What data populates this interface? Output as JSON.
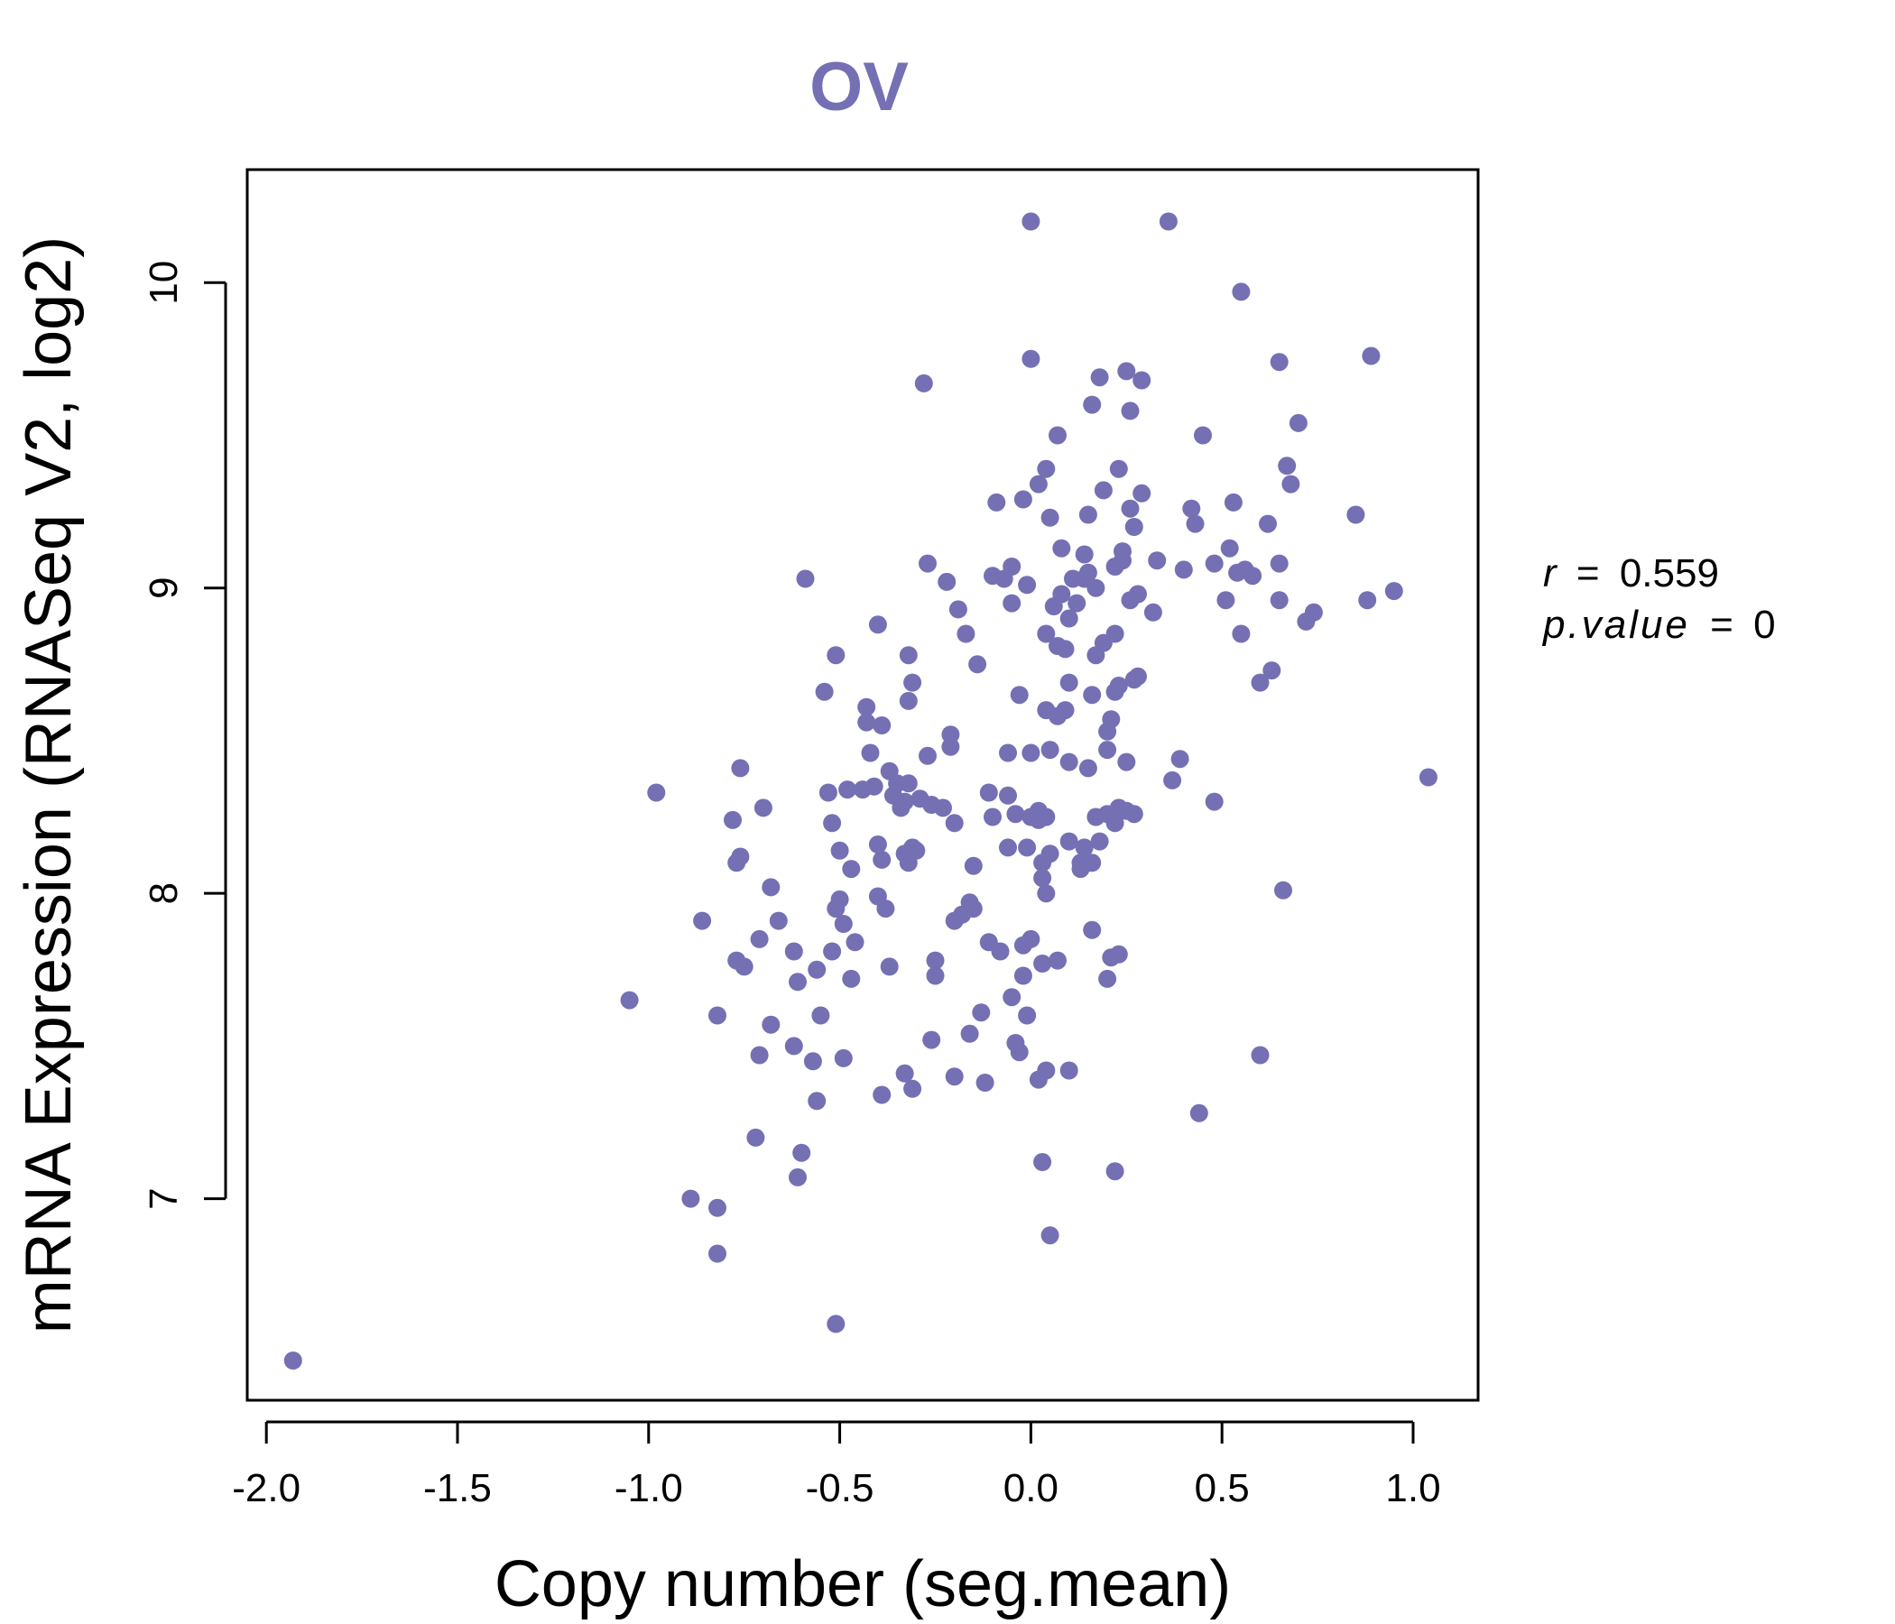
{
  "chart_data": {
    "type": "scatter",
    "title": "OV",
    "xlabel": "Copy number (seg.mean)",
    "ylabel": "mRNA Expression (RNASeq V2, log2)",
    "xlim": [
      -2.05,
      1.17
    ],
    "ylim": [
      6.34,
      10.37
    ],
    "xticks": [
      -2.0,
      -1.5,
      -1.0,
      -0.5,
      0.0,
      0.5,
      1.0
    ],
    "xtick_labels": [
      "-2.0",
      "-1.5",
      "-1.0",
      "-0.5",
      "0.0",
      "0.5",
      "1.0"
    ],
    "yticks": [
      7,
      8,
      9,
      10
    ],
    "ytick_labels": [
      "7",
      "8",
      "9",
      "10"
    ],
    "grid": false,
    "point_color": "#7570b3",
    "annotation": {
      "r_label": "r",
      "r_value": "0.559",
      "p_label": "p.value",
      "p_value": "0",
      "equals": "="
    },
    "points": [
      [
        -1.93,
        6.47
      ],
      [
        -1.05,
        7.65
      ],
      [
        -0.98,
        8.33
      ],
      [
        -0.89,
        7.0
      ],
      [
        -0.86,
        7.91
      ],
      [
        -0.82,
        6.97
      ],
      [
        -0.82,
        7.6
      ],
      [
        -0.82,
        6.82
      ],
      [
        -0.78,
        8.24
      ],
      [
        -0.77,
        7.78
      ],
      [
        -0.77,
        8.1
      ],
      [
        -0.76,
        8.41
      ],
      [
        -0.76,
        8.12
      ],
      [
        -0.75,
        7.76
      ],
      [
        -0.72,
        7.2
      ],
      [
        -0.71,
        7.85
      ],
      [
        -0.71,
        7.47
      ],
      [
        -0.7,
        8.28
      ],
      [
        -0.68,
        8.02
      ],
      [
        -0.68,
        7.57
      ],
      [
        -0.66,
        7.91
      ],
      [
        -0.62,
        7.81
      ],
      [
        -0.62,
        7.5
      ],
      [
        -0.61,
        7.71
      ],
      [
        -0.61,
        7.07
      ],
      [
        -0.6,
        7.15
      ],
      [
        -0.59,
        9.03
      ],
      [
        -0.57,
        7.45
      ],
      [
        -0.56,
        7.32
      ],
      [
        -0.56,
        7.75
      ],
      [
        -0.55,
        7.6
      ],
      [
        -0.54,
        8.66
      ],
      [
        -0.53,
        8.33
      ],
      [
        -0.52,
        8.23
      ],
      [
        -0.52,
        7.81
      ],
      [
        -0.51,
        8.78
      ],
      [
        -0.51,
        7.95
      ],
      [
        -0.51,
        6.59
      ],
      [
        -0.5,
        7.98
      ],
      [
        -0.5,
        8.14
      ],
      [
        -0.49,
        7.9
      ],
      [
        -0.49,
        7.46
      ],
      [
        -0.48,
        8.34
      ],
      [
        -0.47,
        8.08
      ],
      [
        -0.47,
        7.72
      ],
      [
        -0.46,
        7.84
      ],
      [
        -0.44,
        8.34
      ],
      [
        -0.43,
        8.61
      ],
      [
        -0.43,
        8.56
      ],
      [
        -0.42,
        8.46
      ],
      [
        -0.41,
        8.35
      ],
      [
        -0.4,
        8.88
      ],
      [
        -0.4,
        8.16
      ],
      [
        -0.4,
        7.99
      ],
      [
        -0.39,
        8.55
      ],
      [
        -0.39,
        8.11
      ],
      [
        -0.39,
        7.34
      ],
      [
        -0.38,
        7.95
      ],
      [
        -0.37,
        8.4
      ],
      [
        -0.37,
        7.76
      ],
      [
        -0.36,
        8.32
      ],
      [
        -0.35,
        8.36
      ],
      [
        -0.34,
        8.28
      ],
      [
        -0.33,
        8.3
      ],
      [
        -0.33,
        8.13
      ],
      [
        -0.33,
        7.41
      ],
      [
        -0.32,
        8.78
      ],
      [
        -0.32,
        8.36
      ],
      [
        -0.32,
        8.63
      ],
      [
        -0.32,
        8.1
      ],
      [
        -0.31,
        8.69
      ],
      [
        -0.31,
        8.15
      ],
      [
        -0.31,
        7.36
      ],
      [
        -0.3,
        8.14
      ],
      [
        -0.29,
        8.31
      ],
      [
        -0.28,
        9.67
      ],
      [
        -0.27,
        9.08
      ],
      [
        -0.27,
        8.45
      ],
      [
        -0.26,
        8.29
      ],
      [
        -0.26,
        7.52
      ],
      [
        -0.25,
        7.78
      ],
      [
        -0.25,
        7.73
      ],
      [
        -0.23,
        8.28
      ],
      [
        -0.22,
        9.02
      ],
      [
        -0.21,
        8.52
      ],
      [
        -0.21,
        8.48
      ],
      [
        -0.2,
        8.23
      ],
      [
        -0.2,
        7.91
      ],
      [
        -0.2,
        7.4
      ],
      [
        -0.19,
        8.93
      ],
      [
        -0.18,
        7.93
      ],
      [
        -0.17,
        8.85
      ],
      [
        -0.16,
        7.97
      ],
      [
        -0.16,
        7.54
      ],
      [
        -0.15,
        8.09
      ],
      [
        -0.15,
        7.95
      ],
      [
        -0.14,
        8.75
      ],
      [
        -0.13,
        7.61
      ],
      [
        -0.12,
        7.38
      ],
      [
        -0.11,
        8.33
      ],
      [
        -0.11,
        7.84
      ],
      [
        -0.1,
        9.04
      ],
      [
        -0.1,
        8.25
      ],
      [
        -0.09,
        9.28
      ],
      [
        -0.08,
        7.81
      ],
      [
        -0.07,
        9.03
      ],
      [
        -0.06,
        8.46
      ],
      [
        -0.06,
        8.32
      ],
      [
        -0.06,
        8.15
      ],
      [
        -0.05,
        8.95
      ],
      [
        -0.05,
        7.66
      ],
      [
        -0.05,
        9.07
      ],
      [
        -0.04,
        8.26
      ],
      [
        -0.04,
        7.51
      ],
      [
        -0.03,
        8.65
      ],
      [
        -0.03,
        7.48
      ],
      [
        -0.02,
        9.29
      ],
      [
        -0.02,
        7.83
      ],
      [
        -0.02,
        7.73
      ],
      [
        -0.01,
        9.01
      ],
      [
        -0.01,
        8.15
      ],
      [
        -0.01,
        7.6
      ],
      [
        0.0,
        10.2
      ],
      [
        0.0,
        7.85
      ],
      [
        0.0,
        8.46
      ],
      [
        0.0,
        8.25
      ],
      [
        0.0,
        9.75
      ],
      [
        0.02,
        9.34
      ],
      [
        0.02,
        8.27
      ],
      [
        0.02,
        8.24
      ],
      [
        0.02,
        7.39
      ],
      [
        0.03,
        7.12
      ],
      [
        0.03,
        8.1
      ],
      [
        0.03,
        8.05
      ],
      [
        0.03,
        7.77
      ],
      [
        0.04,
        8.6
      ],
      [
        0.04,
        8.25
      ],
      [
        0.04,
        8.85
      ],
      [
        0.04,
        8.0
      ],
      [
        0.04,
        9.39
      ],
      [
        0.04,
        7.42
      ],
      [
        0.05,
        9.23
      ],
      [
        0.05,
        8.13
      ],
      [
        0.05,
        8.47
      ],
      [
        0.05,
        6.88
      ],
      [
        0.06,
        8.94
      ],
      [
        0.07,
        9.5
      ],
      [
        0.07,
        8.58
      ],
      [
        0.07,
        8.81
      ],
      [
        0.07,
        7.78
      ],
      [
        0.08,
        8.98
      ],
      [
        0.08,
        9.13
      ],
      [
        0.09,
        8.8
      ],
      [
        0.09,
        8.6
      ],
      [
        0.1,
        8.9
      ],
      [
        0.1,
        8.43
      ],
      [
        0.1,
        8.69
      ],
      [
        0.1,
        8.17
      ],
      [
        0.1,
        7.42
      ],
      [
        0.11,
        9.03
      ],
      [
        0.12,
        8.95
      ],
      [
        0.13,
        8.08
      ],
      [
        0.13,
        8.1
      ],
      [
        0.14,
        8.15
      ],
      [
        0.14,
        9.11
      ],
      [
        0.14,
        9.03
      ],
      [
        0.15,
        8.41
      ],
      [
        0.15,
        8.1
      ],
      [
        0.15,
        9.05
      ],
      [
        0.15,
        9.24
      ],
      [
        0.16,
        9.6
      ],
      [
        0.16,
        8.65
      ],
      [
        0.16,
        8.1
      ],
      [
        0.16,
        7.88
      ],
      [
        0.17,
        9.0
      ],
      [
        0.17,
        8.78
      ],
      [
        0.17,
        8.25
      ],
      [
        0.18,
        9.69
      ],
      [
        0.18,
        8.17
      ],
      [
        0.19,
        9.32
      ],
      [
        0.19,
        8.82
      ],
      [
        0.2,
        8.47
      ],
      [
        0.2,
        8.53
      ],
      [
        0.2,
        8.26
      ],
      [
        0.2,
        7.72
      ],
      [
        0.21,
        8.57
      ],
      [
        0.21,
        7.79
      ],
      [
        0.22,
        8.85
      ],
      [
        0.22,
        9.07
      ],
      [
        0.22,
        8.66
      ],
      [
        0.22,
        8.23
      ],
      [
        0.22,
        7.09
      ],
      [
        0.23,
        9.39
      ],
      [
        0.23,
        8.28
      ],
      [
        0.23,
        8.68
      ],
      [
        0.23,
        7.8
      ],
      [
        0.24,
        9.12
      ],
      [
        0.24,
        9.09
      ],
      [
        0.25,
        9.71
      ],
      [
        0.25,
        8.43
      ],
      [
        0.25,
        8.27
      ],
      [
        0.26,
        9.58
      ],
      [
        0.26,
        9.26
      ],
      [
        0.26,
        8.96
      ],
      [
        0.27,
        8.7
      ],
      [
        0.27,
        8.26
      ],
      [
        0.27,
        9.2
      ],
      [
        0.28,
        8.98
      ],
      [
        0.28,
        8.71
      ],
      [
        0.29,
        9.68
      ],
      [
        0.29,
        9.31
      ],
      [
        0.32,
        8.92
      ],
      [
        0.33,
        9.09
      ],
      [
        0.36,
        10.2
      ],
      [
        0.37,
        8.37
      ],
      [
        0.39,
        8.44
      ],
      [
        0.4,
        9.06
      ],
      [
        0.42,
        9.26
      ],
      [
        0.43,
        9.21
      ],
      [
        0.44,
        7.28
      ],
      [
        0.45,
        9.5
      ],
      [
        0.48,
        9.08
      ],
      [
        0.48,
        8.3
      ],
      [
        0.51,
        8.96
      ],
      [
        0.52,
        9.13
      ],
      [
        0.53,
        9.28
      ],
      [
        0.54,
        9.05
      ],
      [
        0.55,
        9.97
      ],
      [
        0.55,
        8.85
      ],
      [
        0.56,
        9.06
      ],
      [
        0.58,
        9.04
      ],
      [
        0.6,
        8.69
      ],
      [
        0.6,
        7.47
      ],
      [
        0.62,
        9.21
      ],
      [
        0.63,
        8.73
      ],
      [
        0.65,
        9.74
      ],
      [
        0.65,
        8.96
      ],
      [
        0.65,
        9.08
      ],
      [
        0.66,
        8.01
      ],
      [
        0.67,
        9.4
      ],
      [
        0.68,
        9.34
      ],
      [
        0.7,
        9.54
      ],
      [
        0.72,
        8.89
      ],
      [
        0.74,
        8.92
      ],
      [
        0.85,
        9.24
      ],
      [
        0.88,
        8.96
      ],
      [
        0.89,
        9.76
      ],
      [
        0.95,
        8.99
      ],
      [
        1.04,
        8.38
      ]
    ]
  }
}
